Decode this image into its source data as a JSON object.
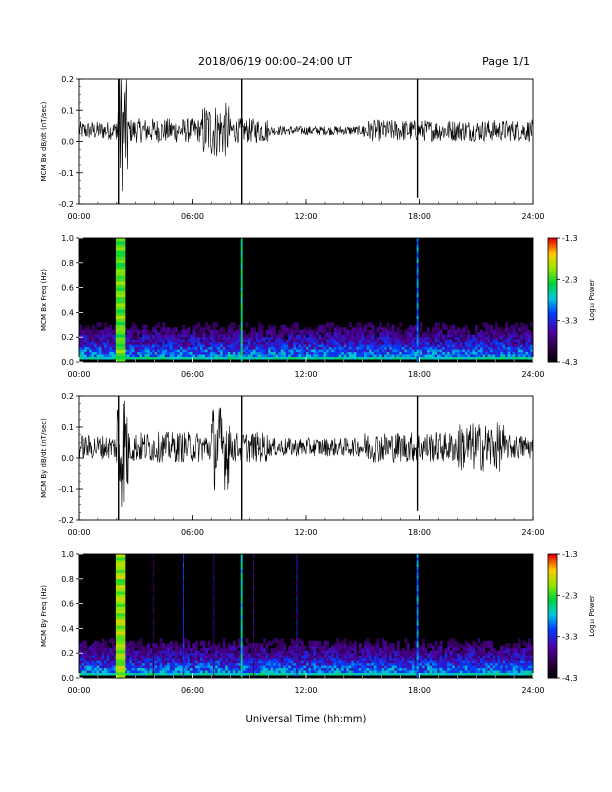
{
  "header": {
    "title": "2018/06/19  00:00–24:00 UT",
    "page": "Page 1/1"
  },
  "x_axis_title": "Universal Time (hh:mm)",
  "chart_data": [
    {
      "type": "line",
      "ylabel": "MCM Bx dB/dt (nT/sec)",
      "xlim": [
        0,
        24
      ],
      "ylim": [
        -0.2,
        0.2
      ],
      "x_ticks": [
        "00:00",
        "06:00",
        "12:00",
        "18:00",
        "24:00"
      ],
      "y_ticks": [
        "0.2",
        "0.1",
        "0.0",
        "-0.1",
        "-0.2"
      ],
      "baseline": 0.035,
      "noise_amplitude": [
        {
          "t0": 0,
          "t1": 2,
          "amp": 0.03
        },
        {
          "t0": 2,
          "t1": 2.6,
          "amp": 0.2
        },
        {
          "t0": 2.6,
          "t1": 6.5,
          "amp": 0.04
        },
        {
          "t0": 6.5,
          "t1": 8,
          "amp": 0.09
        },
        {
          "t0": 8,
          "t1": 10,
          "amp": 0.04
        },
        {
          "t0": 10,
          "t1": 15,
          "amp": 0.015
        },
        {
          "t0": 15,
          "t1": 24,
          "amp": 0.035
        }
      ],
      "spikes": [
        {
          "t": 2.1,
          "min": -0.2,
          "max": 0.2
        },
        {
          "t": 8.6,
          "min": -0.2,
          "max": 0.2
        },
        {
          "t": 17.9,
          "min": -0.18,
          "max": 0.2
        }
      ]
    },
    {
      "type": "heatmap",
      "ylabel": "MCM Bx Freq (Hz)",
      "xlim": [
        0,
        24
      ],
      "ylim": [
        0,
        1.0
      ],
      "x_ticks": [
        "00:00",
        "06:00",
        "12:00",
        "18:00",
        "24:00"
      ],
      "y_ticks": [
        "1.0",
        "0.8",
        "0.6",
        "0.4",
        "0.2",
        "0.0"
      ],
      "colorbar": {
        "label": "Log₁₀ Power",
        "ticks": [
          "-1.3",
          "-2.3",
          "-3.3",
          "-4.3"
        ],
        "range": [
          -4.3,
          -1.3
        ]
      },
      "bands": [
        {
          "t0": 1.95,
          "t1": 2.45,
          "level": 0.7
        },
        {
          "t0": 8.55,
          "t1": 8.65,
          "level": 0.6
        },
        {
          "t0": 17.85,
          "t1": 17.95,
          "level": 0.45
        }
      ]
    },
    {
      "type": "line",
      "ylabel": "MCM By dB/dt (nT/sec)",
      "xlim": [
        0,
        24
      ],
      "ylim": [
        -0.2,
        0.2
      ],
      "x_ticks": [
        "00:00",
        "06:00",
        "12:00",
        "18:00",
        "24:00"
      ],
      "y_ticks": [
        "0.2",
        "0.1",
        "0.0",
        "-0.1",
        "-0.2"
      ],
      "baseline": 0.035,
      "noise_amplitude": [
        {
          "t0": 0,
          "t1": 2,
          "amp": 0.04
        },
        {
          "t0": 2,
          "t1": 2.6,
          "amp": 0.2
        },
        {
          "t0": 2.6,
          "t1": 7,
          "amp": 0.05
        },
        {
          "t0": 7,
          "t1": 8,
          "amp": 0.14
        },
        {
          "t0": 8,
          "t1": 10,
          "amp": 0.05
        },
        {
          "t0": 10,
          "t1": 15,
          "amp": 0.03
        },
        {
          "t0": 15,
          "t1": 20,
          "amp": 0.05
        },
        {
          "t0": 20,
          "t1": 22.5,
          "amp": 0.08
        },
        {
          "t0": 22.5,
          "t1": 24,
          "amp": 0.04
        }
      ],
      "spikes": [
        {
          "t": 2.1,
          "min": -0.2,
          "max": 0.2
        },
        {
          "t": 8.6,
          "min": -0.2,
          "max": 0.2
        },
        {
          "t": 17.9,
          "min": -0.17,
          "max": 0.2
        }
      ]
    },
    {
      "type": "heatmap",
      "ylabel": "MCM By Freq (Hz)",
      "xlim": [
        0,
        24
      ],
      "ylim": [
        0,
        1.0
      ],
      "x_ticks": [
        "00:00",
        "06:00",
        "12:00",
        "18:00",
        "24:00"
      ],
      "y_ticks": [
        "1.0",
        "0.8",
        "0.6",
        "0.4",
        "0.2",
        "0.0"
      ],
      "colorbar": {
        "label": "Log₁₀ Power",
        "ticks": [
          "-1.3",
          "-2.3",
          "-3.3",
          "-4.3"
        ],
        "range": [
          -4.3,
          -1.3
        ]
      },
      "bands": [
        {
          "t0": 1.95,
          "t1": 2.45,
          "level": 0.75
        },
        {
          "t0": 3.9,
          "t1": 3.95,
          "level": 0.15
        },
        {
          "t0": 5.5,
          "t1": 5.55,
          "level": 0.35
        },
        {
          "t0": 7.1,
          "t1": 7.15,
          "level": 0.2
        },
        {
          "t0": 8.55,
          "t1": 8.65,
          "level": 0.55
        },
        {
          "t0": 9.2,
          "t1": 9.25,
          "level": 0.2
        },
        {
          "t0": 11.5,
          "t1": 11.55,
          "level": 0.3
        },
        {
          "t0": 17.85,
          "t1": 17.95,
          "level": 0.45
        }
      ]
    }
  ]
}
